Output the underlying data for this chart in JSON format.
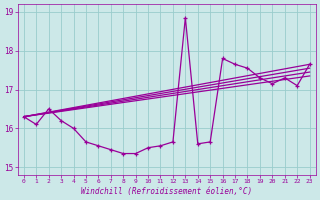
{
  "xlabel": "Windchill (Refroidissement éolien,°C)",
  "xlim": [
    -0.5,
    23.5
  ],
  "ylim": [
    14.8,
    19.2
  ],
  "yticks": [
    15,
    16,
    17,
    18,
    19
  ],
  "xticks": [
    0,
    1,
    2,
    3,
    4,
    5,
    6,
    7,
    8,
    9,
    10,
    11,
    12,
    13,
    14,
    15,
    16,
    17,
    18,
    19,
    20,
    21,
    22,
    23
  ],
  "bg_color": "#cce8e8",
  "line_color": "#990099",
  "grid_color": "#99cccc",
  "data_y": [
    16.3,
    16.1,
    16.5,
    16.2,
    16.0,
    15.65,
    15.55,
    15.45,
    15.35,
    15.35,
    15.5,
    15.55,
    15.65,
    18.85,
    15.6,
    15.65,
    17.8,
    17.65,
    17.55,
    17.3,
    17.15,
    17.3,
    17.1,
    17.65
  ],
  "trend_lines": [
    {
      "x_start": 0,
      "y_start": 16.3,
      "x_end": 23,
      "y_end": 17.35
    },
    {
      "x_start": 0,
      "y_start": 16.3,
      "x_end": 23,
      "y_end": 17.45
    },
    {
      "x_start": 0,
      "y_start": 16.3,
      "x_end": 23,
      "y_end": 17.55
    },
    {
      "x_start": 0,
      "y_start": 16.3,
      "x_end": 23,
      "y_end": 17.65
    }
  ]
}
